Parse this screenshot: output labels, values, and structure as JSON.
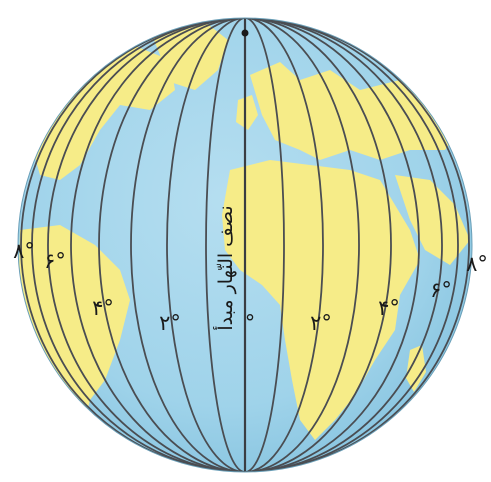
{
  "map": {
    "prime_meridian_label": "نصف النّهار مبدأ",
    "zero_label": "°",
    "west_labels": {
      "w20": "۲°",
      "w40": "۴°",
      "w60": "۶°",
      "w80": "۸°"
    },
    "east_labels": {
      "e20": "۲°",
      "e40": "۴°",
      "e60": "۶°",
      "e80": "۸°"
    },
    "colors": {
      "ocean": "#9fd3ea",
      "land": "#f6ec88",
      "meridian": "#4a4d52"
    }
  }
}
